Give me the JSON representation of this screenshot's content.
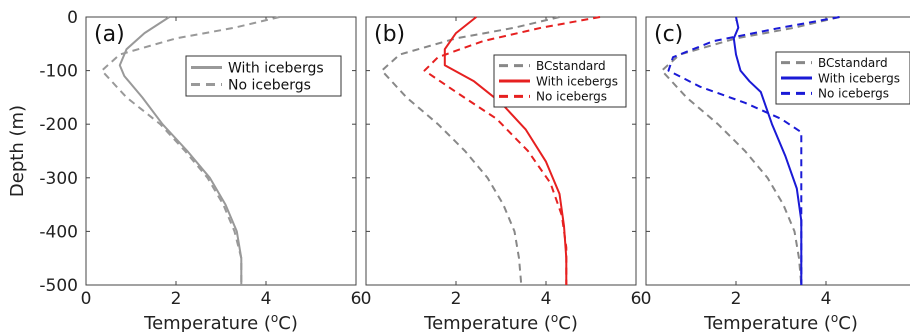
{
  "chart_data": [
    {
      "type": "line",
      "panel_label": "(a)",
      "xlabel": "Temperature (",
      "xlabel_super": "o",
      "xlabel_tail": "C)",
      "ylabel": "Depth (m)",
      "xlim": [
        0,
        6
      ],
      "ylim": [
        -500,
        0
      ],
      "x_ticks": [
        "0",
        "2",
        "4",
        "6"
      ],
      "y_ticks": [
        "0",
        "-100",
        "-200",
        "-300",
        "-400",
        "-500"
      ],
      "legend": {
        "position": "top-right"
      },
      "series": [
        {
          "name": "With icebergs",
          "color": "#999999",
          "dash": "solid",
          "in_legend": true,
          "x": [
            1.85,
            1.3,
            0.9,
            0.75,
            0.85,
            1.25,
            1.7,
            2.25,
            2.75,
            3.1,
            3.35,
            3.45,
            3.45
          ],
          "y": [
            0,
            -30,
            -60,
            -90,
            -110,
            -150,
            -200,
            -250,
            -300,
            -350,
            -400,
            -450,
            -500
          ]
        },
        {
          "name": "No icebergs",
          "color": "#999999",
          "dash": "dashed",
          "in_legend": true,
          "x": [
            4.3,
            3.3,
            2.0,
            0.75,
            0.35,
            0.9,
            1.65,
            2.2,
            2.7,
            3.05,
            3.3,
            3.45,
            3.45
          ],
          "y": [
            0,
            -20,
            -40,
            -70,
            -100,
            -150,
            -200,
            -250,
            -300,
            -350,
            -400,
            -450,
            -500
          ]
        }
      ]
    },
    {
      "type": "line",
      "panel_label": "(b)",
      "xlabel": "Temperature (",
      "xlabel_super": "o",
      "xlabel_tail": "C)",
      "xlim": [
        0,
        6
      ],
      "ylim": [
        -500,
        0
      ],
      "x_ticks": [
        "0",
        "2",
        "4",
        "6"
      ],
      "legend": {
        "position": "top-right"
      },
      "series": [
        {
          "name": "BCstandard",
          "color": "#888888",
          "dash": "dashed",
          "in_legend": true,
          "x": [
            4.3,
            3.3,
            2.0,
            0.75,
            0.35,
            0.9,
            1.6,
            2.2,
            2.7,
            3.05,
            3.3,
            3.4,
            3.45
          ],
          "y": [
            0,
            -20,
            -40,
            -70,
            -100,
            -150,
            -200,
            -250,
            -300,
            -350,
            -400,
            -450,
            -500
          ]
        },
        {
          "name": "With icebergs",
          "color": "#e62020",
          "dash": "solid",
          "in_legend": true,
          "x": [
            2.45,
            2.0,
            1.75,
            1.75,
            2.4,
            3.0,
            3.55,
            4.0,
            4.3,
            4.4,
            4.45,
            4.45
          ],
          "y": [
            0,
            -30,
            -60,
            -90,
            -120,
            -160,
            -210,
            -270,
            -330,
            -390,
            -450,
            -500
          ]
        },
        {
          "name": "No icebergs",
          "color": "#e62020",
          "dash": "dashed",
          "in_legend": true,
          "x": [
            5.2,
            3.9,
            2.6,
            1.6,
            1.3,
            2.0,
            2.9,
            3.6,
            4.1,
            4.35,
            4.45,
            4.45
          ],
          "y": [
            0,
            -20,
            -45,
            -75,
            -100,
            -140,
            -190,
            -250,
            -310,
            -370,
            -430,
            -500
          ]
        }
      ]
    },
    {
      "type": "line",
      "panel_label": "(c)",
      "xlabel": "Temperature (",
      "xlabel_super": "o",
      "xlabel_tail": "C)",
      "xlim": [
        0,
        6
      ],
      "ylim": [
        -500,
        0
      ],
      "x_ticks": [
        "0",
        "2",
        "4"
      ],
      "legend": {
        "position": "top-right"
      },
      "series": [
        {
          "name": "BCstandard",
          "color": "#888888",
          "dash": "dashed",
          "in_legend": true,
          "x": [
            4.3,
            3.3,
            2.0,
            0.75,
            0.35,
            0.9,
            1.6,
            2.2,
            2.7,
            3.05,
            3.3,
            3.4,
            3.45
          ],
          "y": [
            0,
            -20,
            -40,
            -70,
            -100,
            -150,
            -200,
            -250,
            -300,
            -350,
            -400,
            -450,
            -500
          ]
        },
        {
          "name": "With icebergs",
          "color": "#1a1ad6",
          "dash": "solid",
          "in_legend": true,
          "x": [
            2.0,
            2.05,
            1.95,
            2.0,
            2.1,
            2.3,
            2.55,
            2.8,
            3.1,
            3.35,
            3.45,
            3.45,
            3.45
          ],
          "y": [
            0,
            -20,
            -40,
            -70,
            -100,
            -120,
            -140,
            -200,
            -260,
            -320,
            -380,
            -440,
            -500
          ]
        },
        {
          "name": "No icebergs",
          "color": "#1a1ad6",
          "dash": "dashed",
          "in_legend": true,
          "x": [
            4.3,
            3.0,
            1.5,
            0.6,
            0.5,
            1.2,
            2.2,
            3.0,
            3.45,
            3.45,
            3.45,
            3.45
          ],
          "y": [
            0,
            -20,
            -45,
            -75,
            -100,
            -130,
            -160,
            -190,
            -215,
            -300,
            -400,
            -500
          ]
        }
      ]
    }
  ]
}
